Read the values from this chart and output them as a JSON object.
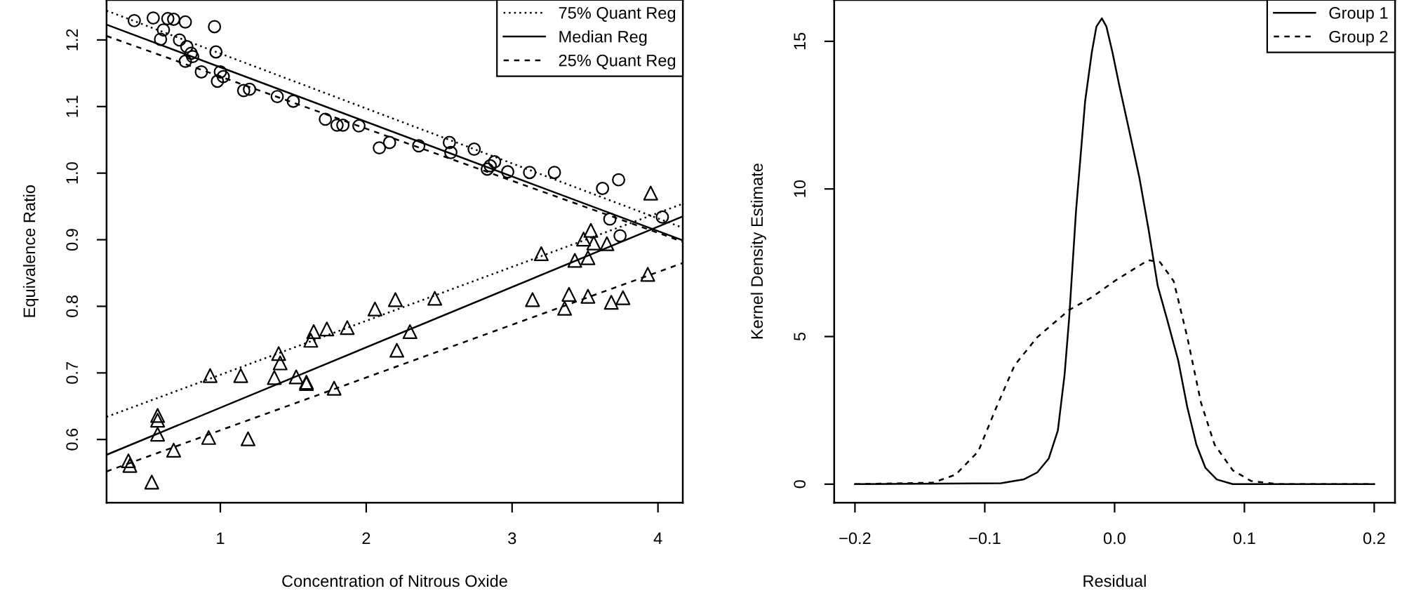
{
  "chart_data": [
    {
      "type": "scatter",
      "xlabel": "Concentration of Nitrous Oxide",
      "ylabel": "Equivalence Ratio",
      "xlim": [
        0.22,
        4.17
      ],
      "ylim": [
        0.505,
        1.26
      ],
      "xticks": [
        1,
        2,
        3,
        4
      ],
      "yticks": [
        0.6,
        0.7,
        0.8,
        0.9,
        {
          "value": 1.0,
          "label": "1.0"
        },
        1.1,
        1.2
      ],
      "grid": false,
      "legend": "top right",
      "series": [
        {
          "marker": "circle",
          "color": "#000000",
          "x": [
            0.41,
            0.54,
            0.64,
            0.68,
            0.76,
            0.61,
            0.59,
            0.72,
            0.77,
            0.8,
            0.81,
            0.76,
            0.87,
            0.96,
            0.97,
            1.0,
            1.02,
            0.98,
            1.16,
            1.2,
            1.39,
            1.5,
            1.72,
            1.8,
            1.84,
            1.95,
            2.09,
            2.16,
            2.36,
            2.57,
            2.58,
            2.74,
            2.83,
            2.85,
            2.88,
            2.97,
            3.12,
            3.29,
            3.62,
            3.73,
            3.67,
            3.74,
            4.03
          ],
          "values": [
            1.229,
            1.233,
            1.232,
            1.231,
            1.227,
            1.215,
            1.201,
            1.2,
            1.19,
            1.18,
            1.175,
            1.168,
            1.152,
            1.22,
            1.182,
            1.152,
            1.145,
            1.138,
            1.124,
            1.126,
            1.115,
            1.108,
            1.081,
            1.072,
            1.072,
            1.071,
            1.038,
            1.046,
            1.041,
            1.046,
            1.031,
            1.036,
            1.006,
            1.011,
            1.017,
            1.002,
            1.001,
            1.001,
            0.977,
            0.99,
            0.931,
            0.906,
            0.934
          ]
        },
        {
          "marker": "triangle",
          "color": "#000000",
          "x": [
            0.37,
            0.38,
            0.53,
            0.57,
            0.57,
            0.57,
            0.68,
            0.92,
            0.93,
            1.19,
            1.14,
            1.37,
            1.4,
            1.41,
            1.52,
            1.59,
            1.59,
            1.62,
            1.64,
            1.73,
            1.78,
            1.87,
            2.06,
            2.2,
            2.21,
            2.3,
            2.47,
            3.14,
            3.2,
            3.36,
            3.39,
            3.43,
            3.52,
            3.52,
            3.68,
            3.76,
            3.93,
            3.49,
            3.54,
            3.56,
            3.65,
            3.95
          ],
          "values": [
            0.568,
            0.561,
            0.536,
            0.636,
            0.629,
            0.608,
            0.584,
            0.603,
            0.696,
            0.601,
            0.696,
            0.693,
            0.729,
            0.715,
            0.694,
            0.686,
            0.684,
            0.749,
            0.762,
            0.766,
            0.677,
            0.768,
            0.796,
            0.81,
            0.734,
            0.762,
            0.812,
            0.81,
            0.879,
            0.797,
            0.818,
            0.869,
            0.815,
            0.873,
            0.806,
            0.813,
            0.848,
            0.901,
            0.914,
            0.895,
            0.894,
            0.97
          ]
        },
        {
          "type": "line",
          "name": "75% Quant Reg",
          "line_style": "dotted",
          "color": "#000000",
          "x": [
            0.22,
            4.17
          ],
          "values": [
            1.244,
            0.918
          ]
        },
        {
          "type": "line",
          "name": "Median Reg",
          "line_style": "solid",
          "color": "#000000",
          "x": [
            0.22,
            4.17
          ],
          "values": [
            1.223,
            0.899
          ]
        },
        {
          "type": "line",
          "name": "25% Quant Reg",
          "line_style": "dashed",
          "color": "#000000",
          "x": [
            0.22,
            4.17
          ],
          "values": [
            1.206,
            0.897
          ]
        },
        {
          "type": "line",
          "line_style": "dotted",
          "color": "#000000",
          "x": [
            0.22,
            4.17
          ],
          "values": [
            0.634,
            0.954
          ]
        },
        {
          "type": "line",
          "line_style": "solid",
          "color": "#000000",
          "x": [
            0.22,
            4.17
          ],
          "values": [
            0.577,
            0.935
          ]
        },
        {
          "type": "line",
          "line_style": "dashed",
          "color": "#000000",
          "x": [
            0.22,
            4.17
          ],
          "values": [
            0.552,
            0.865
          ]
        }
      ]
    },
    {
      "type": "line",
      "xlabel": "Residual",
      "ylabel": "Kernel Density Estimate",
      "xlim": [
        -0.216,
        0.216
      ],
      "ylim": [
        -0.63,
        16.4
      ],
      "xticks": [
        {
          "value": -0.2,
          "label": "−0.2"
        },
        {
          "value": -0.1,
          "label": "−0.1"
        },
        {
          "value": 0.0,
          "label": "0.0"
        },
        0.1,
        0.2
      ],
      "yticks": [
        0,
        5,
        10,
        15
      ],
      "grid": false,
      "legend": "top right",
      "series": [
        {
          "name": "Group 1",
          "line_style": "solid",
          "color": "#000000",
          "x": [
            -0.2,
            -0.0875,
            -0.07,
            -0.0595,
            -0.0507,
            -0.0437,
            -0.0385,
            -0.035,
            -0.0297,
            -0.0227,
            -0.0175,
            -0.014,
            -0.0098,
            -0.0063,
            -0.0017,
            0.0035,
            0.0122,
            0.0192,
            0.0262,
            0.0332,
            0.0402,
            0.049,
            0.056,
            0.063,
            0.07,
            0.0787,
            0.091,
            0.2
          ],
          "values": [
            0,
            0.03,
            0.16,
            0.4,
            0.87,
            1.82,
            3.72,
            5.62,
            9.26,
            12.97,
            14.64,
            15.5,
            15.78,
            15.5,
            14.64,
            13.53,
            11.79,
            10.36,
            8.62,
            6.72,
            5.62,
            4.19,
            2.61,
            1.34,
            0.55,
            0.16,
            0,
            0
          ]
        },
        {
          "name": "Group 2",
          "line_style": "dashed",
          "color": "#000000",
          "x": [
            -0.2,
            -0.14,
            -0.1225,
            -0.105,
            -0.091,
            -0.077,
            -0.0595,
            -0.035,
            -0.0175,
            0,
            0.0175,
            0.026,
            0.035,
            0.0455,
            0.056,
            0.0665,
            0.077,
            0.091,
            0.105,
            0.126,
            0.2
          ],
          "values": [
            0,
            0.05,
            0.32,
            1.11,
            2.61,
            4.03,
            4.98,
            5.9,
            6.33,
            6.88,
            7.36,
            7.59,
            7.52,
            6.88,
            4.98,
            2.77,
            1.34,
            0.47,
            0.11,
            0,
            0
          ]
        }
      ]
    }
  ]
}
